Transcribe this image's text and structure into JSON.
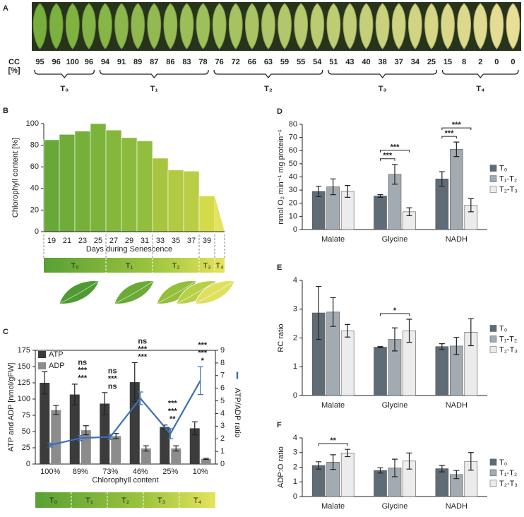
{
  "chart_data": [
    {
      "type": "leaf_strip",
      "label": "A",
      "cc_label": "CC",
      "cc_unit": "[%]",
      "groups": [
        {
          "label": "T₀",
          "values": [
            95,
            96,
            100,
            96
          ]
        },
        {
          "label": "T₁",
          "values": [
            94,
            91,
            89,
            87,
            86,
            83,
            78
          ]
        },
        {
          "label": "T₂",
          "values": [
            76,
            72,
            66,
            63,
            59,
            55,
            54
          ]
        },
        {
          "label": "T₃",
          "values": [
            51,
            43,
            40,
            38,
            37,
            34,
            25
          ]
        },
        {
          "label": "T₄",
          "values": [
            15,
            8,
            2,
            0,
            0
          ]
        }
      ]
    },
    {
      "type": "bar",
      "label": "B",
      "ylabel": "Chlorophyll content [%]",
      "xlabel": "Days during Senescence",
      "categories": [
        19,
        21,
        23,
        25,
        27,
        29,
        31,
        33,
        35,
        37,
        39
      ],
      "values": [
        85,
        90,
        93,
        100,
        94,
        87,
        84,
        68,
        57,
        56,
        33
      ],
      "colors": [
        "#67a838",
        "#6fac39",
        "#76b03a",
        "#7bb33b",
        "#84b73c",
        "#8bbb3d",
        "#92be3e",
        "#a6c640",
        "#b0ca42",
        "#b9ce44",
        "#d3db4a"
      ],
      "ylim": [
        0,
        100
      ],
      "yticks": [
        0,
        20,
        40,
        60,
        80,
        100
      ],
      "stages": [
        "T₀",
        "T₁",
        "T₂",
        "T₃",
        "T₄"
      ]
    },
    {
      "type": "bar_line",
      "label": "C",
      "ylabel": "ATP and ADP [nmol/gFW]",
      "xlabel": "Chlorophyll content",
      "categories": [
        "100%",
        "89%",
        "73%",
        "46%",
        "25%",
        "10%"
      ],
      "series": [
        {
          "name": "ATP",
          "color": "#3c3c3c",
          "values": [
            125,
            107,
            93,
            126,
            57,
            55
          ],
          "errors": [
            17,
            16,
            17,
            30,
            3,
            10
          ]
        },
        {
          "name": "ADP",
          "color": "#8c8c8c",
          "values": [
            83,
            52,
            43,
            24,
            24,
            8
          ],
          "errors": [
            7,
            7,
            4,
            4,
            4,
            1
          ]
        },
        {
          "name": "ATP/ADP ratio",
          "color": "#3b70b8",
          "axis": "y2",
          "values": [
            1.5,
            2.05,
            2.15,
            5.2,
            2.4,
            6.6
          ],
          "errors": [
            0.15,
            0.2,
            0.2,
            0.5,
            0.4,
            1.1
          ]
        }
      ],
      "ylim": [
        0,
        175
      ],
      "yticks": [
        0,
        25,
        50,
        75,
        100,
        125,
        150,
        175
      ],
      "y2lim": [
        0,
        9
      ],
      "y2ticks": [
        0,
        1,
        2,
        3,
        4,
        5,
        6,
        7,
        8,
        9
      ],
      "significance": [
        [],
        [
          "ns",
          "***",
          "***"
        ],
        [
          "ns",
          "***",
          "ns"
        ],
        [
          "ns",
          "***",
          "***"
        ],
        [
          "***",
          "***",
          "**"
        ],
        [
          "***",
          "***",
          "*"
        ]
      ],
      "significance_colors": [
        "#333333",
        "#8a8a8a",
        "#3b70b8"
      ],
      "stages": [
        "T₀",
        "T₁",
        "T₂",
        "T₃",
        "T₄"
      ]
    },
    {
      "type": "grouped_bar",
      "label": "D",
      "ylabel": "nmol O₂ min⁻¹  mg protein⁻¹",
      "categories": [
        "Malate",
        "Glycine",
        "NADH"
      ],
      "series": [
        {
          "name": "T₀",
          "color": "#5f6b75",
          "values": [
            29,
            25.5,
            38.5
          ],
          "errors": [
            4,
            1,
            5.5
          ]
        },
        {
          "name": "T₁-T₂",
          "color": "#a3abb2",
          "values": [
            32.5,
            42,
            61
          ],
          "errors": [
            6,
            7.5,
            5.5
          ]
        },
        {
          "name": "T₂-T₃",
          "color": "#ececec",
          "values": [
            29,
            13.5,
            18.5
          ],
          "errors": [
            4.5,
            3,
            5
          ]
        }
      ],
      "ylim": [
        0,
        80
      ],
      "yticks": [
        0,
        10,
        20,
        30,
        40,
        50,
        60,
        70,
        80
      ],
      "brackets": [
        {
          "category": "Glycine",
          "between": [
            "T₀",
            "T₁-T₂"
          ],
          "label": "***"
        },
        {
          "category": "Glycine",
          "between": [
            "T₀",
            "T₂-T₃"
          ],
          "label": "***"
        },
        {
          "category": "NADH",
          "between": [
            "T₀",
            "T₁-T₂"
          ],
          "label": "***"
        },
        {
          "category": "NADH",
          "between": [
            "T₀",
            "T₂-T₃"
          ],
          "label": "***"
        }
      ]
    },
    {
      "type": "grouped_bar",
      "label": "E",
      "ylabel": "RC ratio",
      "categories": [
        "Malate",
        "Glycine",
        "NADH"
      ],
      "series": [
        {
          "name": "T₀",
          "color": "#5f6b75",
          "values": [
            2.87,
            1.68,
            1.7
          ],
          "errors": [
            0.92,
            0.02,
            0.1
          ]
        },
        {
          "name": "T₁-T₂",
          "color": "#a3abb2",
          "values": [
            2.9,
            1.95,
            1.72
          ],
          "errors": [
            0.5,
            0.4,
            0.3
          ]
        },
        {
          "name": "T₂-T₃",
          "color": "#ececec",
          "values": [
            2.25,
            2.25,
            2.2
          ],
          "errors": [
            0.22,
            0.4,
            0.47
          ]
        }
      ],
      "ylim": [
        0,
        4
      ],
      "yticks": [
        0,
        1,
        2,
        3,
        4
      ],
      "brackets": [
        {
          "category": "Glycine",
          "between": [
            "T₀",
            "T₂-T₃"
          ],
          "label": "*"
        }
      ]
    },
    {
      "type": "grouped_bar",
      "label": "F",
      "ylabel": "ADP:O ratio",
      "categories": [
        "Malate",
        "Glycine",
        "NADH"
      ],
      "series": [
        {
          "name": "T₀",
          "color": "#5f6b75",
          "values": [
            2.12,
            1.78,
            1.9
          ],
          "errors": [
            0.25,
            0.18,
            0.22
          ]
        },
        {
          "name": "T₁-T₂",
          "color": "#a3abb2",
          "values": [
            2.35,
            1.95,
            1.5
          ],
          "errors": [
            0.5,
            0.6,
            0.28
          ]
        },
        {
          "name": "T₂-T₃",
          "color": "#ececec",
          "values": [
            2.97,
            2.42,
            2.4
          ],
          "errors": [
            0.25,
            0.55,
            0.6
          ]
        }
      ],
      "ylim": [
        0,
        4
      ],
      "yticks": [
        0,
        1,
        2,
        3,
        4
      ],
      "brackets": [
        {
          "category": "Malate",
          "between": [
            "T₀",
            "T₂-T₃"
          ],
          "label": "**"
        }
      ]
    }
  ]
}
